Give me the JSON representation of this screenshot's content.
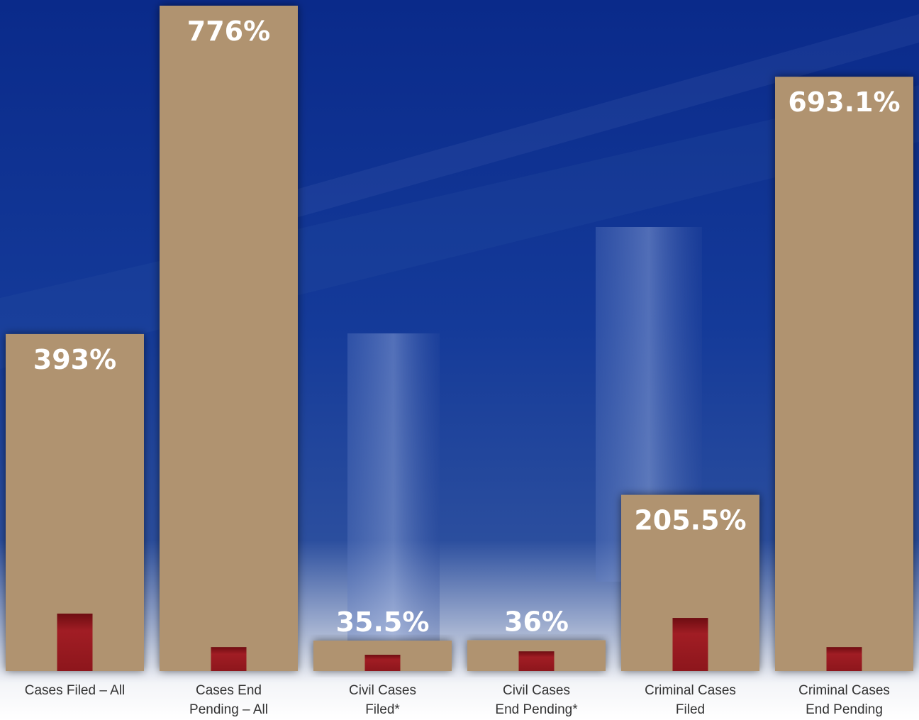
{
  "chart_data": {
    "type": "bar",
    "categories": [
      [
        "Cases Filed – All"
      ],
      [
        "Cases End",
        "Pending – All"
      ],
      [
        "Civil Cases",
        "Filed*"
      ],
      [
        "Civil Cases",
        "End Pending*"
      ],
      [
        "Criminal Cases",
        "Filed"
      ],
      [
        "Criminal Cases",
        "End Pending"
      ]
    ],
    "series": [
      {
        "color": "#b09370",
        "values": [
          393,
          776,
          35.5,
          36,
          205.5,
          693.1
        ],
        "value_labels": [
          "393%",
          "776%",
          "35.5%",
          "36%",
          "205.5%",
          "693.1%"
        ]
      },
      {
        "color": "#9b1c22",
        "values": [
          67,
          28,
          19,
          23,
          62,
          28
        ]
      }
    ]
  }
}
